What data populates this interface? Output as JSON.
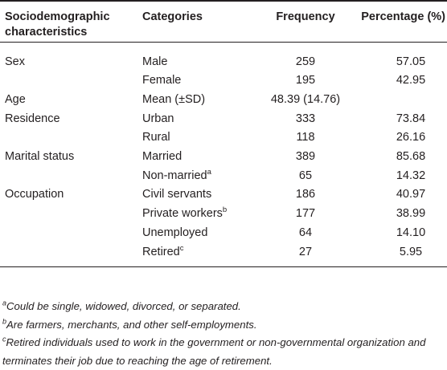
{
  "header": {
    "col1_line1": "Sociodemographic",
    "col1_line2": "characteristics",
    "col2": "Categories",
    "col3": "Frequency",
    "col4": "Percentage (%)"
  },
  "rows": [
    {
      "characteristic": "Sex",
      "category": "Male",
      "cat_sup": "",
      "frequency": "259",
      "percentage": "57.05"
    },
    {
      "characteristic": "",
      "category": "Female",
      "cat_sup": "",
      "frequency": "195",
      "percentage": "42.95"
    },
    {
      "characteristic": "Age",
      "category": "Mean (±SD)",
      "cat_sup": "",
      "frequency": "48.39 (14.76)",
      "percentage": ""
    },
    {
      "characteristic": "Residence",
      "category": "Urban",
      "cat_sup": "",
      "frequency": "333",
      "percentage": "73.84"
    },
    {
      "characteristic": "",
      "category": "Rural",
      "cat_sup": "",
      "frequency": "118",
      "percentage": "26.16"
    },
    {
      "characteristic": "Marital status",
      "category": "Married",
      "cat_sup": "",
      "frequency": "389",
      "percentage": "85.68"
    },
    {
      "characteristic": "",
      "category": "Non-married",
      "cat_sup": "a",
      "frequency": "65",
      "percentage": "14.32"
    },
    {
      "characteristic": "Occupation",
      "category": "Civil servants",
      "cat_sup": "",
      "frequency": "186",
      "percentage": "40.97"
    },
    {
      "characteristic": "",
      "category": "Private workers",
      "cat_sup": "b",
      "frequency": "177",
      "percentage": "38.99"
    },
    {
      "characteristic": "",
      "category": "Unemployed",
      "cat_sup": "",
      "frequency": "64",
      "percentage": "14.10"
    },
    {
      "characteristic": "",
      "category": "Retired",
      "cat_sup": "c",
      "frequency": "27",
      "percentage": "5.95"
    }
  ],
  "footnotes": [
    {
      "mark": "a",
      "text": "Could be single, widowed, divorced, or separated."
    },
    {
      "mark": "b",
      "text": "Are farmers, merchants, and other self-employments."
    },
    {
      "mark": "c",
      "text": "Retired individuals used to work in the government or non-governmental organization and terminates their job due to reaching the age of retirement."
    }
  ]
}
